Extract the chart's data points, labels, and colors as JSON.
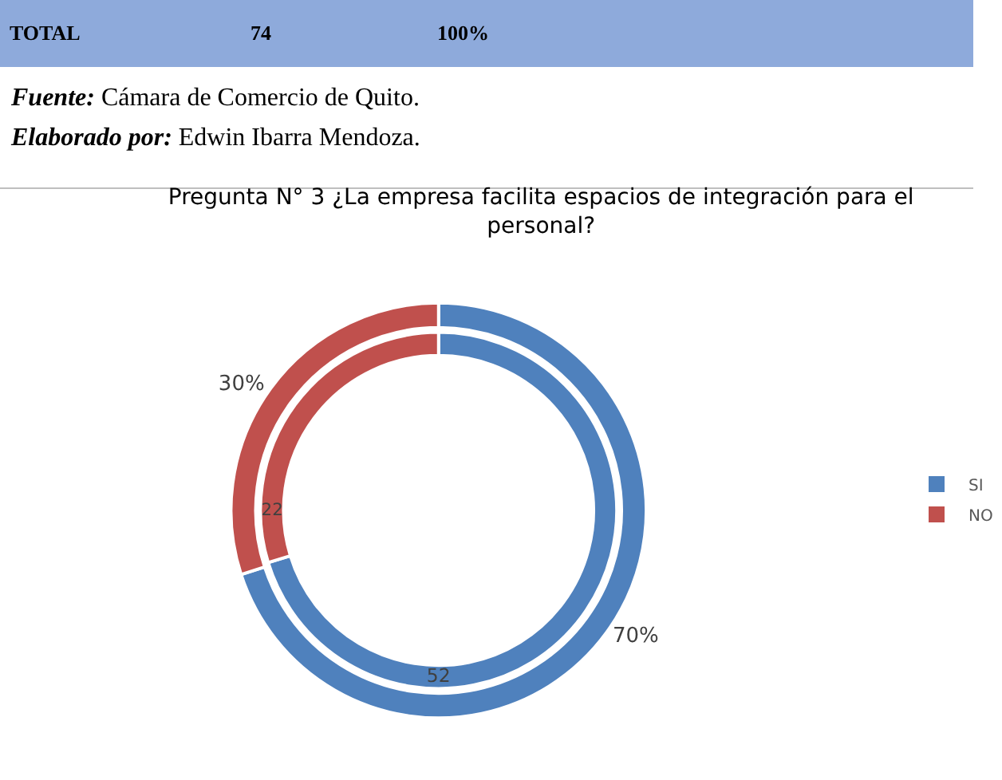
{
  "chart_data": {
    "type": "donut",
    "title": "Pregunta N° 3 ¿La empresa facilita espacios de integración para el personal?",
    "categories": [
      "SI",
      "NO"
    ],
    "colors": [
      "#4f81bd",
      "#c0504d"
    ],
    "series": [
      {
        "values": [
          52,
          22
        ],
        "value_labels": [
          "52",
          "22"
        ]
      },
      {
        "values": [
          70,
          30
        ],
        "value_labels": [
          "70%",
          "30%"
        ]
      }
    ],
    "legend": "right",
    "annotations": [
      "TOTAL",
      "74",
      "100%",
      "Fuente: Cámara de Comercio de Quito.",
      "Elaborado por: Edwin Ibarra Mendoza."
    ]
  }
}
